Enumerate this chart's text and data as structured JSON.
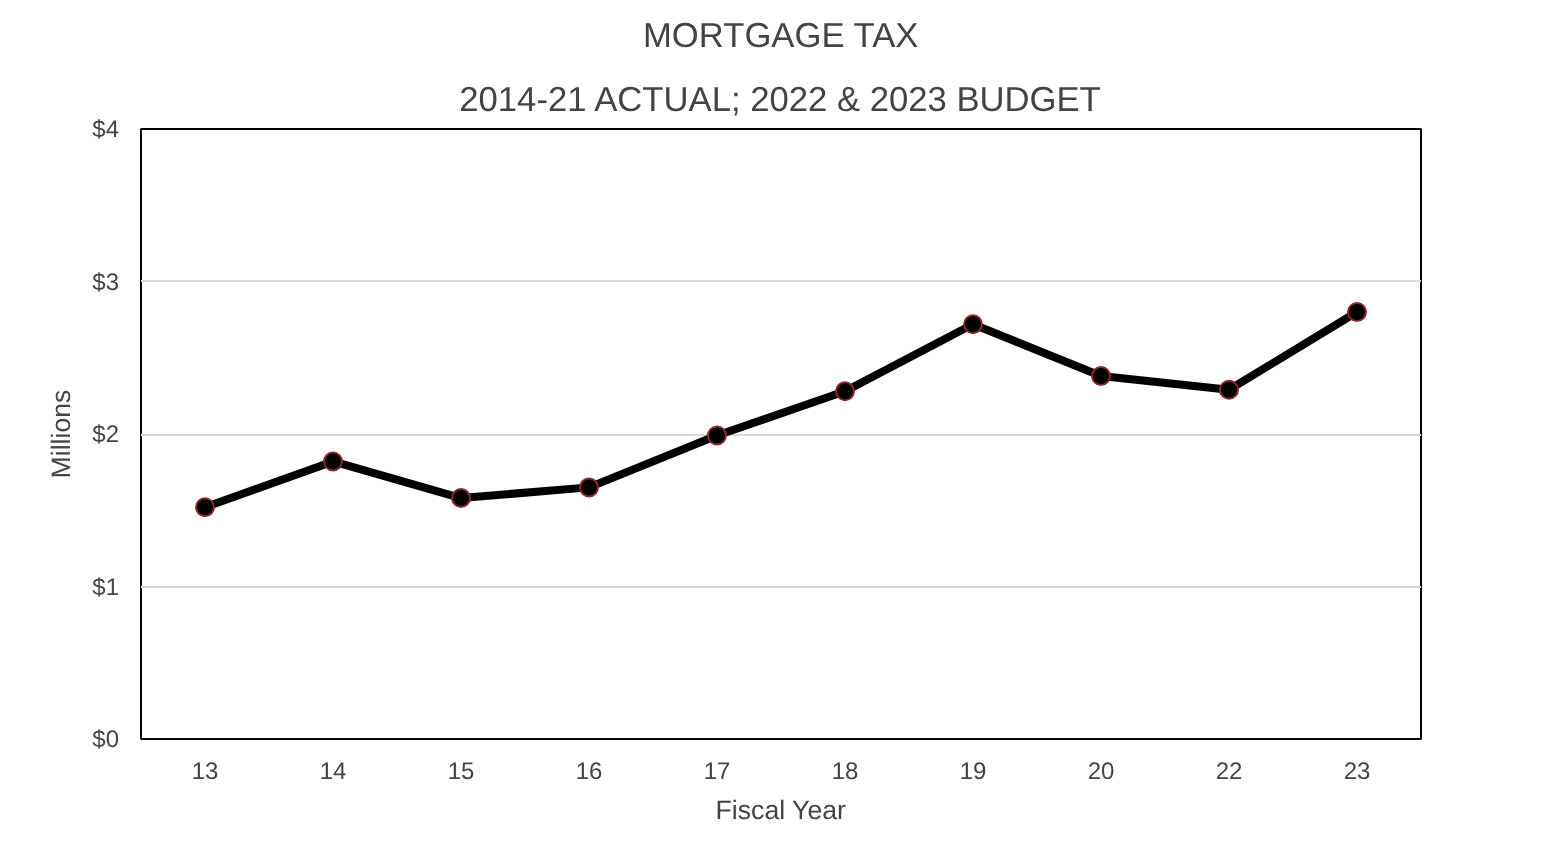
{
  "chart_data": {
    "type": "line",
    "title": "MORTGAGE TAX",
    "subtitle": "2014-21 ACTUAL; 2022 & 2023 BUDGET",
    "xlabel": "Fiscal Year",
    "ylabel": "Millions",
    "categories": [
      "13",
      "14",
      "15",
      "16",
      "17",
      "18",
      "19",
      "20",
      "22",
      "23"
    ],
    "series": [
      {
        "color": "#000000",
        "values": [
          1.52,
          1.82,
          1.58,
          1.65,
          1.99,
          2.28,
          2.72,
          2.38,
          2.29,
          2.8
        ]
      }
    ],
    "ylim": [
      0,
      4
    ],
    "yticks": [
      {
        "value": 0,
        "label": "$0"
      },
      {
        "value": 1,
        "label": "$1"
      },
      {
        "value": 2,
        "label": "$2"
      },
      {
        "value": 3,
        "label": "$3"
      },
      {
        "value": 4,
        "label": "$4"
      }
    ],
    "grid": "y",
    "marker": "circle",
    "line_style": "solid"
  }
}
